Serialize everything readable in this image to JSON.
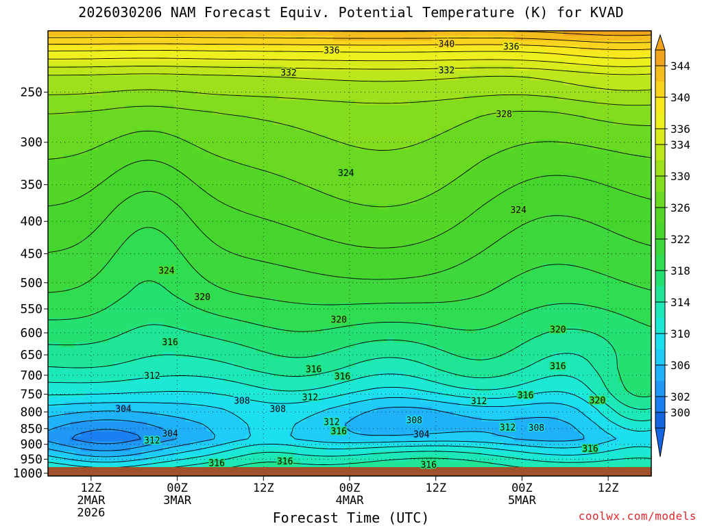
{
  "title": "2026030206 NAM Forecast Equiv. Potential Temperature (K) for KVAD",
  "watermark": "coolwx.com/models",
  "chart_data": {
    "type": "heatmap",
    "title": "2026030206 NAM Forecast Equiv. Potential Temperature (K) for KVAD",
    "xlabel": "Forecast Time (UTC)",
    "ylabel": "",
    "y_scale": "log",
    "y_axis_reversed": true,
    "y_ticks": [
      250,
      300,
      350,
      400,
      450,
      500,
      550,
      600,
      650,
      700,
      750,
      800,
      850,
      900,
      950,
      1000
    ],
    "x_ticks": [
      {
        "hours": 6,
        "lines": [
          "12Z",
          "2MAR",
          "2026"
        ]
      },
      {
        "hours": 18,
        "lines": [
          "00Z",
          "3MAR"
        ]
      },
      {
        "hours": 30,
        "lines": [
          "12Z"
        ]
      },
      {
        "hours": 42,
        "lines": [
          "00Z",
          "4MAR"
        ]
      },
      {
        "hours": 54,
        "lines": [
          "12Z"
        ]
      },
      {
        "hours": 66,
        "lines": [
          "00Z",
          "5MAR"
        ]
      },
      {
        "hours": 78,
        "lines": [
          "12Z"
        ]
      }
    ],
    "x_range_hours": [
      0,
      84
    ],
    "y_range_hPa": [
      1010,
      200
    ],
    "colorbar": {
      "labels": [
        300,
        302,
        306,
        310,
        314,
        318,
        322,
        326,
        330,
        334,
        336,
        340,
        344
      ],
      "levels": [
        298,
        300,
        302,
        304,
        306,
        308,
        310,
        312,
        314,
        316,
        318,
        320,
        322,
        324,
        326,
        328,
        330,
        332,
        334,
        336,
        338,
        340,
        342,
        344,
        346
      ],
      "colors": [
        "#1565e0",
        "#1a7ff0",
        "#1f97f5",
        "#1fb2f8",
        "#1fccf7",
        "#1de0ee",
        "#1ce8d6",
        "#1ce8b8",
        "#1fe596",
        "#24e070",
        "#2fdd52",
        "#3ed83c",
        "#45d52c",
        "#53d626",
        "#6ad922",
        "#84dc1e",
        "#9fe01c",
        "#bde61c",
        "#d8ec1c",
        "#eef01e",
        "#f8e81e",
        "#f8d41e",
        "#f5bc1e",
        "#f0a41e"
      ]
    },
    "contour_labels": [
      {
        "value": 340,
        "x_hours": 55.5,
        "p": 210
      },
      {
        "value": 336,
        "x_hours": 39.5,
        "p": 215
      },
      {
        "value": 336,
        "x_hours": 64.5,
        "p": 212
      },
      {
        "value": 332,
        "x_hours": 33.5,
        "p": 233
      },
      {
        "value": 332,
        "x_hours": 55.5,
        "p": 231
      },
      {
        "value": 328,
        "x_hours": 63.5,
        "p": 271
      },
      {
        "value": 324,
        "x_hours": 41.5,
        "p": 336
      },
      {
        "value": 324,
        "x_hours": 65.5,
        "p": 384
      },
      {
        "value": 324,
        "x_hours": 16.5,
        "p": 479
      },
      {
        "value": 320,
        "x_hours": 21.5,
        "p": 527
      },
      {
        "value": 320,
        "x_hours": 40.5,
        "p": 572
      },
      {
        "value": 320,
        "x_hours": 71.0,
        "p": 593
      },
      {
        "value": 316,
        "x_hours": 17.0,
        "p": 621
      },
      {
        "value": 316,
        "x_hours": 37.0,
        "p": 686
      },
      {
        "value": 316,
        "x_hours": 41.0,
        "p": 704
      },
      {
        "value": 316,
        "x_hours": 71.0,
        "p": 678
      },
      {
        "value": 316,
        "x_hours": 66.5,
        "p": 754
      },
      {
        "value": 316,
        "x_hours": 40.5,
        "p": 859
      },
      {
        "value": 316,
        "x_hours": 75.5,
        "p": 915
      },
      {
        "value": 316,
        "x_hours": 23.5,
        "p": 964
      },
      {
        "value": 316,
        "x_hours": 33.0,
        "p": 958
      },
      {
        "value": 316,
        "x_hours": 53.0,
        "p": 970
      },
      {
        "value": 312,
        "x_hours": 14.5,
        "p": 702
      },
      {
        "value": 312,
        "x_hours": 36.5,
        "p": 759
      },
      {
        "value": 312,
        "x_hours": 60.0,
        "p": 770
      },
      {
        "value": 312,
        "x_hours": 64.0,
        "p": 847
      },
      {
        "value": 312,
        "x_hours": 39.5,
        "p": 831
      },
      {
        "value": 312,
        "x_hours": 14.5,
        "p": 888
      },
      {
        "value": 308,
        "x_hours": 27.0,
        "p": 769
      },
      {
        "value": 308,
        "x_hours": 32.0,
        "p": 792
      },
      {
        "value": 308,
        "x_hours": 51.0,
        "p": 825
      },
      {
        "value": 308,
        "x_hours": 68.0,
        "p": 848
      },
      {
        "value": 304,
        "x_hours": 10.5,
        "p": 792
      },
      {
        "value": 304,
        "x_hours": 52.0,
        "p": 869
      },
      {
        "value": 304,
        "x_hours": 17.0,
        "p": 866
      },
      {
        "value": 320,
        "x_hours": 76.5,
        "p": 768
      }
    ]
  }
}
